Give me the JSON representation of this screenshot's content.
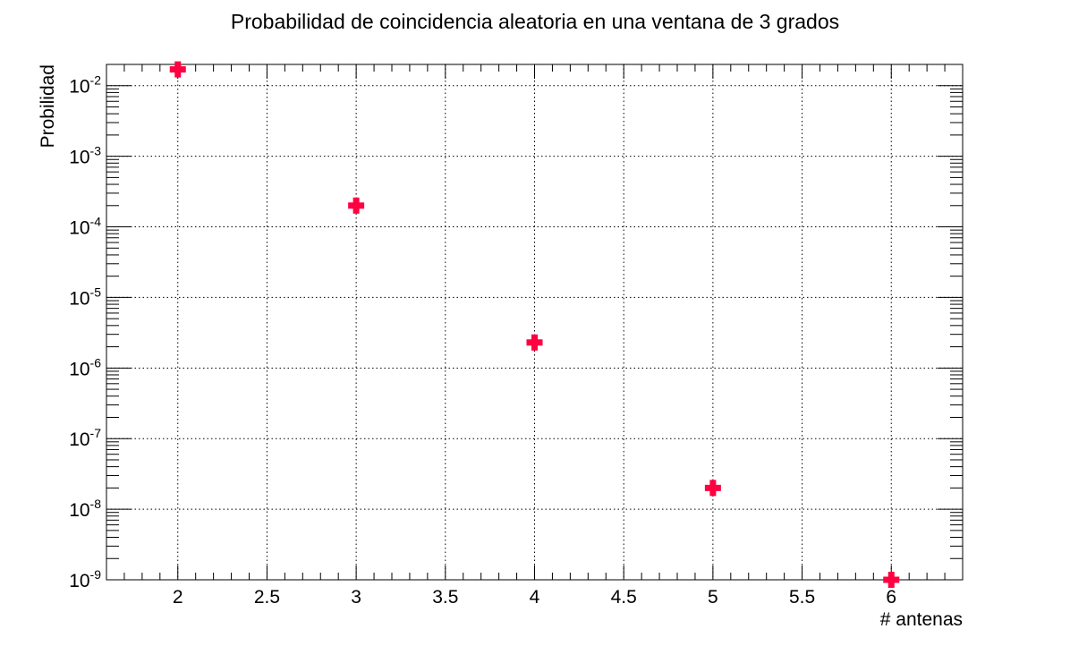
{
  "chart_data": {
    "type": "scatter",
    "title": "Probabilidad de coincidencia aleatoria en una ventana de 3 grados",
    "xlabel": "# antenas",
    "ylabel": "Probilidad",
    "xlim": [
      1.6,
      6.4
    ],
    "ylim": [
      1e-09,
      0.02
    ],
    "yscale": "log",
    "grid": true,
    "x_ticks": [
      "2",
      "2.5",
      "3",
      "3.5",
      "4",
      "4.5",
      "5",
      "5.5",
      "6"
    ],
    "x_tick_values": [
      2,
      2.5,
      3,
      3.5,
      4,
      4.5,
      5,
      5.5,
      6
    ],
    "y_tick_exponents": [
      -9,
      -8,
      -7,
      -6,
      -5,
      -4,
      -3,
      -2
    ],
    "y_tick_base": "10",
    "marker": "cross",
    "marker_color": "#ff0040",
    "series": [
      {
        "x": [
          2,
          3,
          4,
          5,
          6
        ],
        "y": [
          0.017,
          0.0002,
          2.3e-06,
          2e-08,
          1e-09
        ]
      }
    ]
  }
}
